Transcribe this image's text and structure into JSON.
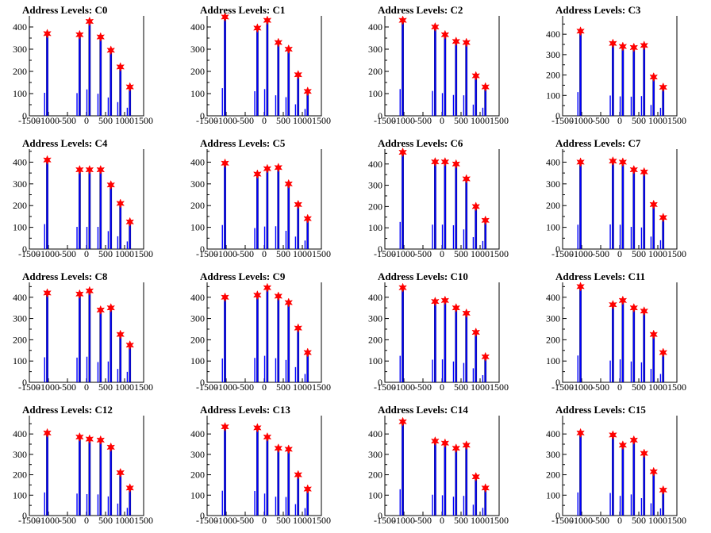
{
  "chart_data": [
    {
      "type": "histogram",
      "title": "Address Levels: C0",
      "xlim": [
        -1500,
        1500
      ],
      "ylim": [
        0,
        450
      ],
      "x_ticks": [
        "-1500",
        "-1000",
        "-500",
        "0",
        "500",
        "1000",
        "1500"
      ],
      "y_ticks": [
        "0",
        "100",
        "200",
        "300",
        "400"
      ],
      "peaks": [
        {
          "x": -1030,
          "y": 370
        },
        {
          "x": -180,
          "y": 365
        },
        {
          "x": 80,
          "y": 425
        },
        {
          "x": 370,
          "y": 355
        },
        {
          "x": 640,
          "y": 295
        },
        {
          "x": 890,
          "y": 220
        },
        {
          "x": 1140,
          "y": 130
        }
      ]
    },
    {
      "type": "histogram",
      "title": "Address Levels: C1",
      "xlim": [
        -1500,
        1500
      ],
      "ylim": [
        0,
        450
      ],
      "x_ticks": [
        "-1500",
        "-1000",
        "-500",
        "0",
        "500",
        "1000",
        "1500"
      ],
      "y_ticks": [
        "0",
        "100",
        "200",
        "300",
        "400"
      ],
      "peaks": [
        {
          "x": -1030,
          "y": 445
        },
        {
          "x": -180,
          "y": 395
        },
        {
          "x": 80,
          "y": 430
        },
        {
          "x": 370,
          "y": 330
        },
        {
          "x": 640,
          "y": 300
        },
        {
          "x": 890,
          "y": 185
        },
        {
          "x": 1140,
          "y": 110
        }
      ]
    },
    {
      "type": "histogram",
      "title": "Address Levels: C2",
      "xlim": [
        -1500,
        1500
      ],
      "ylim": [
        0,
        450
      ],
      "x_ticks": [
        "-1500",
        "-1000",
        "-500",
        "0",
        "500",
        "1000",
        "1500"
      ],
      "y_ticks": [
        "0",
        "100",
        "200",
        "300",
        "400"
      ],
      "peaks": [
        {
          "x": -1030,
          "y": 430
        },
        {
          "x": -180,
          "y": 400
        },
        {
          "x": 80,
          "y": 365
        },
        {
          "x": 370,
          "y": 335
        },
        {
          "x": 640,
          "y": 330
        },
        {
          "x": 890,
          "y": 180
        },
        {
          "x": 1140,
          "y": 130
        }
      ]
    },
    {
      "type": "histogram",
      "title": "Address Levels: C3",
      "xlim": [
        -1500,
        1500
      ],
      "ylim": [
        0,
        490
      ],
      "x_ticks": [
        "-1500",
        "-1000",
        "-500",
        "0",
        "500",
        "1000",
        "1500"
      ],
      "y_ticks": [
        "0",
        "100",
        "200",
        "300",
        "400"
      ],
      "peaks": [
        {
          "x": -1030,
          "y": 415
        },
        {
          "x": -180,
          "y": 355
        },
        {
          "x": 80,
          "y": 340
        },
        {
          "x": 370,
          "y": 335
        },
        {
          "x": 640,
          "y": 345
        },
        {
          "x": 890,
          "y": 190
        },
        {
          "x": 1140,
          "y": 140
        }
      ]
    },
    {
      "type": "histogram",
      "title": "Address Levels: C4",
      "xlim": [
        -1500,
        1500
      ],
      "ylim": [
        0,
        460
      ],
      "x_ticks": [
        "-1500",
        "-1000",
        "-500",
        "0",
        "500",
        "1000",
        "1500"
      ],
      "y_ticks": [
        "0",
        "100",
        "200",
        "300",
        "400"
      ],
      "peaks": [
        {
          "x": -1030,
          "y": 410
        },
        {
          "x": -180,
          "y": 365
        },
        {
          "x": 80,
          "y": 365
        },
        {
          "x": 370,
          "y": 365
        },
        {
          "x": 640,
          "y": 295
        },
        {
          "x": 890,
          "y": 210
        },
        {
          "x": 1140,
          "y": 125
        }
      ]
    },
    {
      "type": "histogram",
      "title": "Address Levels: C5",
      "xlim": [
        -1500,
        1500
      ],
      "ylim": [
        0,
        460
      ],
      "x_ticks": [
        "-1500",
        "-1000",
        "-500",
        "0",
        "500",
        "1000",
        "1500"
      ],
      "y_ticks": [
        "0",
        "100",
        "200",
        "300",
        "400"
      ],
      "peaks": [
        {
          "x": -1030,
          "y": 395
        },
        {
          "x": -180,
          "y": 345
        },
        {
          "x": 80,
          "y": 370
        },
        {
          "x": 370,
          "y": 375
        },
        {
          "x": 640,
          "y": 300
        },
        {
          "x": 890,
          "y": 205
        },
        {
          "x": 1140,
          "y": 140
        }
      ]
    },
    {
      "type": "histogram",
      "title": "Address Levels: C6",
      "xlim": [
        -1500,
        1500
      ],
      "ylim": [
        0,
        470
      ],
      "x_ticks": [
        "-1500",
        "-1000",
        "-500",
        "0",
        "500",
        "1000",
        "1500"
      ],
      "y_ticks": [
        "0",
        "100",
        "200",
        "300",
        "400"
      ],
      "peaks": [
        {
          "x": -1030,
          "y": 455
        },
        {
          "x": -180,
          "y": 410
        },
        {
          "x": 80,
          "y": 410
        },
        {
          "x": 370,
          "y": 400
        },
        {
          "x": 640,
          "y": 330
        },
        {
          "x": 890,
          "y": 200
        },
        {
          "x": 1140,
          "y": 135
        }
      ]
    },
    {
      "type": "histogram",
      "title": "Address Levels: C7",
      "xlim": [
        -1500,
        1500
      ],
      "ylim": [
        0,
        460
      ],
      "x_ticks": [
        "-1500",
        "-1000",
        "-500",
        "0",
        "500",
        "1000",
        "1500"
      ],
      "y_ticks": [
        "0",
        "100",
        "200",
        "300",
        "400"
      ],
      "peaks": [
        {
          "x": -1030,
          "y": 400
        },
        {
          "x": -180,
          "y": 405
        },
        {
          "x": 80,
          "y": 400
        },
        {
          "x": 370,
          "y": 365
        },
        {
          "x": 640,
          "y": 355
        },
        {
          "x": 890,
          "y": 205
        },
        {
          "x": 1140,
          "y": 145
        }
      ]
    },
    {
      "type": "histogram",
      "title": "Address Levels: C8",
      "xlim": [
        -1500,
        1500
      ],
      "ylim": [
        0,
        470
      ],
      "x_ticks": [
        "-1500",
        "-1000",
        "-500",
        "0",
        "500",
        "1000",
        "1500"
      ],
      "y_ticks": [
        "0",
        "100",
        "200",
        "300",
        "400"
      ],
      "peaks": [
        {
          "x": -1030,
          "y": 420
        },
        {
          "x": -180,
          "y": 415
        },
        {
          "x": 80,
          "y": 430
        },
        {
          "x": 370,
          "y": 340
        },
        {
          "x": 640,
          "y": 350
        },
        {
          "x": 890,
          "y": 225
        },
        {
          "x": 1140,
          "y": 175
        }
      ]
    },
    {
      "type": "histogram",
      "title": "Address Levels: C9",
      "xlim": [
        -1500,
        1500
      ],
      "ylim": [
        0,
        470
      ],
      "x_ticks": [
        "-1500",
        "-1000",
        "-500",
        "0",
        "500",
        "1000",
        "1500"
      ],
      "y_ticks": [
        "0",
        "100",
        "200",
        "300",
        "400"
      ],
      "peaks": [
        {
          "x": -1030,
          "y": 400
        },
        {
          "x": -180,
          "y": 410
        },
        {
          "x": 80,
          "y": 445
        },
        {
          "x": 370,
          "y": 405
        },
        {
          "x": 640,
          "y": 375
        },
        {
          "x": 890,
          "y": 255
        },
        {
          "x": 1140,
          "y": 140
        }
      ]
    },
    {
      "type": "histogram",
      "title": "Address Levels: C10",
      "xlim": [
        -1500,
        1500
      ],
      "ylim": [
        0,
        470
      ],
      "x_ticks": [
        "-1500",
        "-1000",
        "-500",
        "0",
        "500",
        "1000",
        "1500"
      ],
      "y_ticks": [
        "0",
        "100",
        "200",
        "300",
        "400"
      ],
      "peaks": [
        {
          "x": -1030,
          "y": 445
        },
        {
          "x": -180,
          "y": 380
        },
        {
          "x": 80,
          "y": 385
        },
        {
          "x": 370,
          "y": 350
        },
        {
          "x": 640,
          "y": 325
        },
        {
          "x": 890,
          "y": 235
        },
        {
          "x": 1140,
          "y": 120
        }
      ]
    },
    {
      "type": "histogram",
      "title": "Address Levels: C11",
      "xlim": [
        -1500,
        1500
      ],
      "ylim": [
        0,
        470
      ],
      "x_ticks": [
        "-1500",
        "-1000",
        "-500",
        "0",
        "500",
        "1000",
        "1500"
      ],
      "y_ticks": [
        "0",
        "100",
        "200",
        "300",
        "400"
      ],
      "peaks": [
        {
          "x": -1030,
          "y": 450
        },
        {
          "x": -180,
          "y": 365
        },
        {
          "x": 80,
          "y": 385
        },
        {
          "x": 370,
          "y": 350
        },
        {
          "x": 640,
          "y": 335
        },
        {
          "x": 890,
          "y": 225
        },
        {
          "x": 1140,
          "y": 140
        }
      ]
    },
    {
      "type": "histogram",
      "title": "Address Levels: C12",
      "xlim": [
        -1500,
        1500
      ],
      "ylim": [
        0,
        490
      ],
      "x_ticks": [
        "-1500",
        "-1000",
        "-500",
        "0",
        "500",
        "1000",
        "1500"
      ],
      "y_ticks": [
        "0",
        "100",
        "200",
        "300",
        "400"
      ],
      "peaks": [
        {
          "x": -1030,
          "y": 405
        },
        {
          "x": -180,
          "y": 385
        },
        {
          "x": 80,
          "y": 375
        },
        {
          "x": 370,
          "y": 370
        },
        {
          "x": 640,
          "y": 335
        },
        {
          "x": 890,
          "y": 210
        },
        {
          "x": 1140,
          "y": 135
        }
      ]
    },
    {
      "type": "histogram",
      "title": "Address Levels: C13",
      "xlim": [
        -1500,
        1500
      ],
      "ylim": [
        0,
        490
      ],
      "x_ticks": [
        "-1500",
        "-1000",
        "-500",
        "0",
        "500",
        "1000",
        "1500"
      ],
      "y_ticks": [
        "0",
        "100",
        "200",
        "300",
        "400"
      ],
      "peaks": [
        {
          "x": -1030,
          "y": 435
        },
        {
          "x": -180,
          "y": 430
        },
        {
          "x": 80,
          "y": 385
        },
        {
          "x": 370,
          "y": 330
        },
        {
          "x": 640,
          "y": 325
        },
        {
          "x": 890,
          "y": 200
        },
        {
          "x": 1140,
          "y": 130
        }
      ]
    },
    {
      "type": "histogram",
      "title": "Address Levels: C14",
      "xlim": [
        -1500,
        1500
      ],
      "ylim": [
        0,
        490
      ],
      "x_ticks": [
        "-1500",
        "-1000",
        "-500",
        "0",
        "500",
        "1000",
        "1500"
      ],
      "y_ticks": [
        "0",
        "100",
        "200",
        "300",
        "400"
      ],
      "peaks": [
        {
          "x": -1030,
          "y": 460
        },
        {
          "x": -180,
          "y": 365
        },
        {
          "x": 80,
          "y": 355
        },
        {
          "x": 370,
          "y": 330
        },
        {
          "x": 640,
          "y": 345
        },
        {
          "x": 890,
          "y": 190
        },
        {
          "x": 1140,
          "y": 135
        }
      ]
    },
    {
      "type": "histogram",
      "title": "Address Levels: C15",
      "xlim": [
        -1500,
        1500
      ],
      "ylim": [
        0,
        490
      ],
      "x_ticks": [
        "-1500",
        "-1000",
        "-500",
        "0",
        "500",
        "1000",
        "1500"
      ],
      "y_ticks": [
        "0",
        "100",
        "200",
        "300",
        "400"
      ],
      "peaks": [
        {
          "x": -1030,
          "y": 405
        },
        {
          "x": -180,
          "y": 395
        },
        {
          "x": 80,
          "y": 345
        },
        {
          "x": 370,
          "y": 370
        },
        {
          "x": 640,
          "y": 305
        },
        {
          "x": 890,
          "y": 215
        },
        {
          "x": 1140,
          "y": 125
        }
      ]
    }
  ],
  "colors": {
    "bars": "#0000ff",
    "bar_outline": "#000000",
    "marker": "#ff0000",
    "axis": "#000000",
    "background": "#ffffff"
  }
}
